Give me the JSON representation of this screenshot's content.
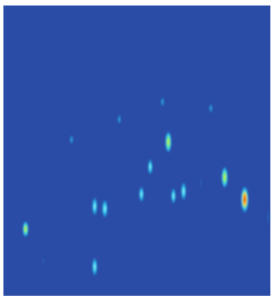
{
  "chart_data": {
    "type": "heatmap",
    "title": "",
    "xlabel": "",
    "ylabel": "",
    "colormap": "jet",
    "colors": {
      "background": "#2a4ba6",
      "low": "#2a4ba6",
      "mid_low": "#1ea7e6",
      "mid": "#3fe0ff",
      "mid_high": "#f0e000",
      "high": "#d81e1e"
    },
    "grid": false,
    "legend": "none",
    "peaks": [
      {
        "id": "peak-1",
        "x": 0.083,
        "y": 0.77,
        "intensity": 0.72,
        "spread_x": 0.012,
        "spread_y": 0.03
      },
      {
        "id": "peak-2",
        "x": 0.255,
        "y": 0.462,
        "intensity": 0.42,
        "spread_x": 0.008,
        "spread_y": 0.02
      },
      {
        "id": "peak-3",
        "x": 0.434,
        "y": 0.392,
        "intensity": 0.28,
        "spread_x": 0.008,
        "spread_y": 0.02
      },
      {
        "id": "peak-4",
        "x": 0.596,
        "y": 0.332,
        "intensity": 0.3,
        "spread_x": 0.008,
        "spread_y": 0.02
      },
      {
        "id": "peak-5",
        "x": 0.777,
        "y": 0.354,
        "intensity": 0.34,
        "spread_x": 0.008,
        "spread_y": 0.02
      },
      {
        "id": "peak-6",
        "x": 0.618,
        "y": 0.47,
        "intensity": 0.86,
        "spread_x": 0.013,
        "spread_y": 0.04
      },
      {
        "id": "peak-7",
        "x": 0.55,
        "y": 0.556,
        "intensity": 0.52,
        "spread_x": 0.01,
        "spread_y": 0.03
      },
      {
        "id": "peak-8",
        "x": 0.829,
        "y": 0.592,
        "intensity": 0.74,
        "spread_x": 0.013,
        "spread_y": 0.04
      },
      {
        "id": "peak-9",
        "x": 0.904,
        "y": 0.668,
        "intensity": 1.0,
        "spread_x": 0.016,
        "spread_y": 0.05
      },
      {
        "id": "peak-10",
        "x": 0.675,
        "y": 0.64,
        "intensity": 0.58,
        "spread_x": 0.011,
        "spread_y": 0.035
      },
      {
        "id": "peak-11",
        "x": 0.637,
        "y": 0.656,
        "intensity": 0.52,
        "spread_x": 0.01,
        "spread_y": 0.03
      },
      {
        "id": "peak-12",
        "x": 0.517,
        "y": 0.65,
        "intensity": 0.48,
        "spread_x": 0.01,
        "spread_y": 0.03
      },
      {
        "id": "peak-13",
        "x": 0.342,
        "y": 0.692,
        "intensity": 0.62,
        "spread_x": 0.011,
        "spread_y": 0.035
      },
      {
        "id": "peak-14",
        "x": 0.38,
        "y": 0.7,
        "intensity": 0.66,
        "spread_x": 0.012,
        "spread_y": 0.035
      },
      {
        "id": "peak-15",
        "x": 0.342,
        "y": 0.9,
        "intensity": 0.58,
        "spread_x": 0.011,
        "spread_y": 0.035
      },
      {
        "id": "peak-16",
        "x": 0.15,
        "y": 0.88,
        "intensity": 0.12,
        "spread_x": 0.006,
        "spread_y": 0.018
      },
      {
        "id": "peak-17",
        "x": 0.993,
        "y": 0.73,
        "intensity": 0.16,
        "spread_x": 0.008,
        "spread_y": 0.04
      },
      {
        "id": "peak-18",
        "x": 0.74,
        "y": 0.61,
        "intensity": 0.12,
        "spread_x": 0.007,
        "spread_y": 0.03
      }
    ]
  }
}
